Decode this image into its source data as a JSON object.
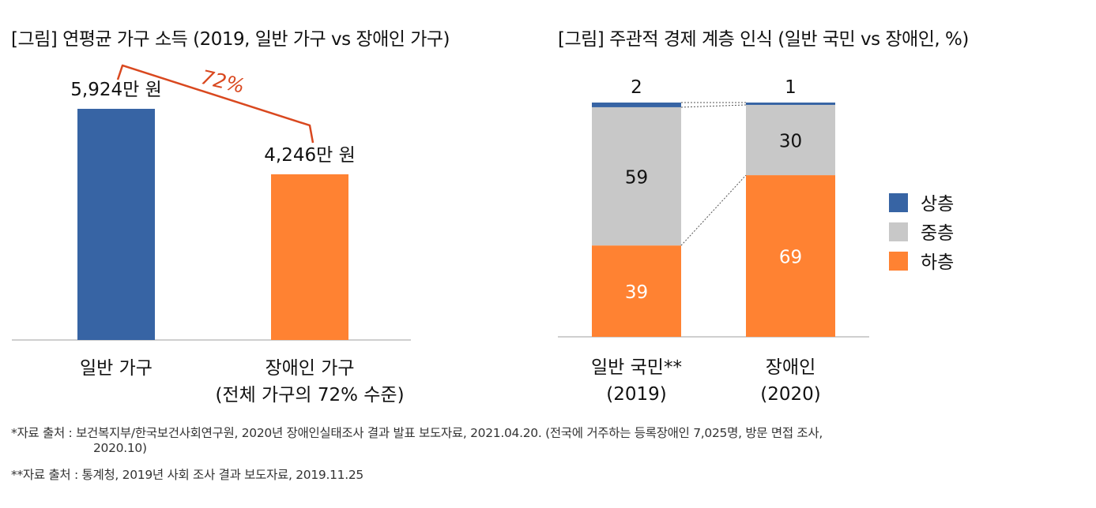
{
  "chart_data": [
    {
      "type": "bar",
      "title": "[그림] 연평균 가구 소득 (2019, 일반 가구 vs 장애인 가구)",
      "categories": [
        "일반 가구",
        "장애인 가구"
      ],
      "category_sublabels": [
        "",
        "(전체 가구의 72% 수준)"
      ],
      "values": [
        5924,
        4246
      ],
      "value_labels": [
        "5,924만 원",
        "4,246만 원"
      ],
      "colors": [
        "#3764A4",
        "#FF8232"
      ],
      "ratio_label": "72%",
      "ratio_color": "#D9481F",
      "ylim": [
        0,
        7500
      ],
      "xlabel": "",
      "ylabel": ""
    },
    {
      "type": "bar",
      "stacked": true,
      "title": "[그림] 주관적 경제 계층 인식 (일반 국민 vs 장애인, %)",
      "categories": [
        "일반 국민**",
        "장애인"
      ],
      "category_years": [
        "(2019)",
        "(2020)"
      ],
      "series": [
        {
          "name": "하층",
          "values": [
            39,
            69
          ],
          "color": "#FF8232"
        },
        {
          "name": "중층",
          "values": [
            59,
            30
          ],
          "color": "#C8C8C8"
        },
        {
          "name": "상층",
          "values": [
            2,
            1
          ],
          "color": "#3764A4"
        }
      ],
      "legend_order": [
        "상층",
        "중층",
        "하층"
      ],
      "legend_position": "right",
      "ylim": [
        0,
        100
      ]
    }
  ],
  "sources": {
    "line1": "*자료 출처 : 보건복지부/한국보건사회연구원, 2020년 장애인실태조사 결과 발표 보도자료, 2021.04.20. (전국에 거주하는 등록장애인 7,025명, 방문 면접 조사,",
    "line1b": "2020.10)",
    "line2": "**자료 출처 : 통계청, 2019년 사회 조사 결과 보도자료, 2019.11.25"
  }
}
